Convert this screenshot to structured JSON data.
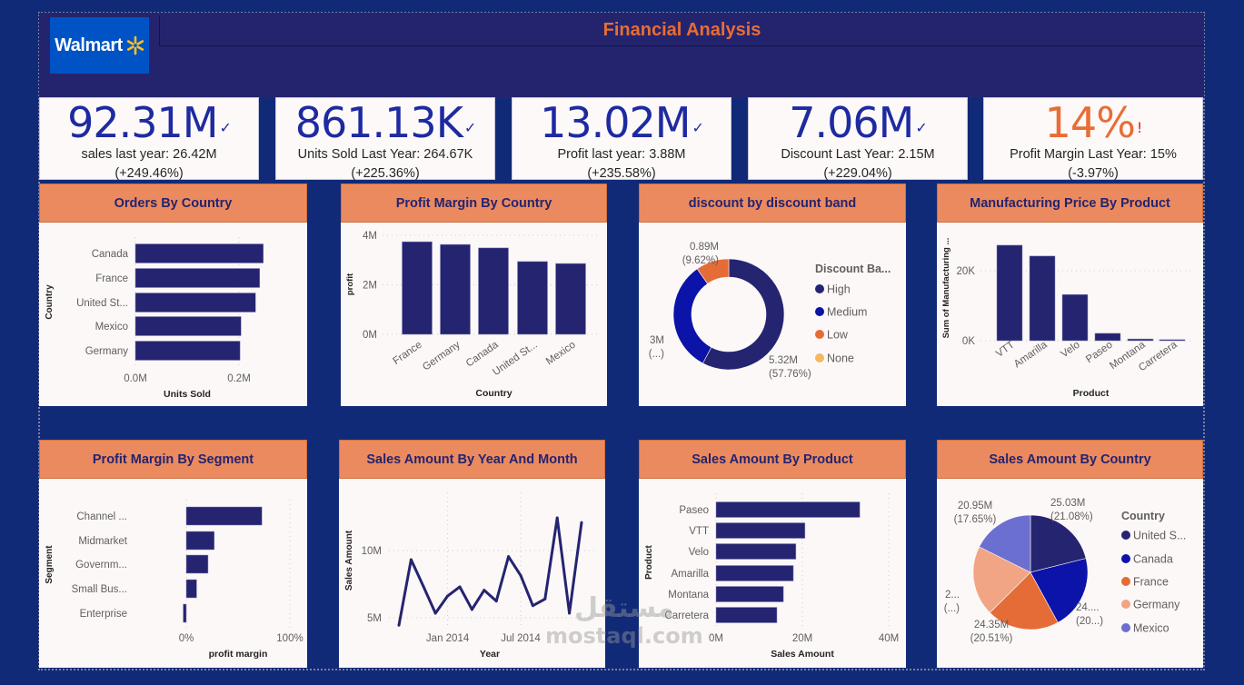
{
  "header": {
    "title": "Financial Analysis",
    "logo_text": "Walmart"
  },
  "kpis": [
    {
      "value": "92.31M",
      "mark": "✓",
      "sub1": "sales last year: 26.42M",
      "sub2": "(+249.46%)",
      "color": "#1e2aa0"
    },
    {
      "value": "861.13K",
      "mark": "✓",
      "sub1": "Units Sold Last Year: 264.67K",
      "sub2": "(+225.36%)",
      "color": "#1e2aa0"
    },
    {
      "value": "13.02M",
      "mark": "✓",
      "sub1": "Profit last year: 3.88M",
      "sub2": "(+235.58%)",
      "color": "#1e2aa0"
    },
    {
      "value": "7.06M",
      "mark": "✓",
      "sub1": "Discount Last Year: 2.15M",
      "sub2": "(+229.04%)",
      "color": "#1e2aa0"
    },
    {
      "value": "14%",
      "mark": "!",
      "sub1": "Profit Margin Last Year: 15%",
      "sub2": "(-3.97%)",
      "color": "#e86d35"
    }
  ],
  "colors": {
    "navy": "#252470",
    "blue": "#0c13a8",
    "orange": "#e66c37",
    "salmon": "#f1a585",
    "yellow": "#f6b75f",
    "violet": "#6b6fcf",
    "title_bar": "#ec8a5f"
  },
  "watermark": {
    "arabic": "مستقل",
    "latin": "mostaql.com"
  },
  "chart_data": [
    {
      "id": "orders",
      "title": "Orders By Country",
      "type": "bar",
      "orientation": "horizontal",
      "categories": [
        "Canada",
        "France",
        "United St...",
        "Mexico",
        "Germany"
      ],
      "values": [
        0.247,
        0.24,
        0.232,
        0.204,
        0.202
      ],
      "unit": "M",
      "xlabel": "Units Sold",
      "ylabel": "Country",
      "ticks": [
        "0.0M",
        "0.2M"
      ],
      "xlim": [
        0,
        0.25
      ]
    },
    {
      "id": "pmcountry",
      "title": "Profit Margin By Country",
      "type": "bar",
      "categories": [
        "France",
        "Germany",
        "Canada",
        "United St...",
        "Mexico"
      ],
      "values": [
        3.74,
        3.63,
        3.49,
        2.94,
        2.86
      ],
      "unit": "M",
      "xlabel": "Country",
      "ylabel": "profit",
      "ticks": [
        "0M",
        "2M",
        "4M"
      ],
      "ylim": [
        0,
        4
      ]
    },
    {
      "id": "discount",
      "title": "discount by discount band",
      "type": "pie",
      "donut": true,
      "legend_title": "Discount Ba...",
      "categories": [
        "High",
        "Medium",
        "Low",
        "None"
      ],
      "values": [
        5.32,
        3.0,
        0.89,
        0
      ],
      "percents": [
        57.76,
        32.62,
        9.62,
        0
      ],
      "labels": [
        [
          "5.32M",
          "(57.76%)"
        ],
        [
          "3M",
          "(...)"
        ],
        [
          "0.89M",
          "(9.62%)"
        ]
      ],
      "legend": "right"
    },
    {
      "id": "mfg",
      "title": "Manufacturing Price By Product",
      "type": "bar",
      "categories": [
        "VTT",
        "Amarilla",
        "Velo",
        "Paseo",
        "Montana",
        "Carretera"
      ],
      "values": [
        27.3,
        24.2,
        13.2,
        2.1,
        0.5,
        0.3
      ],
      "unit": "K",
      "xlabel": "Product",
      "ylabel": "Sum of Manufacturing ...",
      "ticks": [
        "0K",
        "20K"
      ],
      "ylim": [
        0,
        28
      ]
    },
    {
      "id": "segment",
      "title": "Profit Margin By Segment",
      "type": "bar",
      "orientation": "horizontal",
      "categories": [
        "Channel ...",
        "Midmarket",
        "Governm...",
        "Small Bus...",
        "Enterprise"
      ],
      "values": [
        73,
        27,
        21,
        10,
        -3
      ],
      "unit": "%",
      "xlabel": "profit margin",
      "ylabel": "Segment",
      "ticks": [
        "0%",
        "100%"
      ],
      "xlim": [
        0,
        100
      ]
    },
    {
      "id": "salesmonth",
      "title": "Sales Amount By Year And Month",
      "type": "line",
      "x": [
        "2013-09",
        "2013-10",
        "2013-11",
        "2013-12",
        "2014-01",
        "2014-02",
        "2014-03",
        "2014-04",
        "2014-05",
        "2014-06",
        "2014-07",
        "2014-08",
        "2014-09",
        "2014-10",
        "2014-11",
        "2014-12"
      ],
      "values": [
        4.44,
        9.32,
        7.36,
        5.34,
        6.62,
        7.3,
        5.62,
        7.05,
        6.24,
        9.55,
        8.15,
        5.9,
        6.4,
        12.43,
        5.34,
        12.09
      ],
      "unit": "M",
      "xlabel": "Year",
      "ylabel": "Sales Amount",
      "xticks": [
        "Jan 2014",
        "Jul 2014"
      ],
      "yticks": [
        "5M",
        "10M"
      ]
    },
    {
      "id": "salesproduct",
      "title": "Sales Amount By Product",
      "type": "bar",
      "orientation": "horizontal",
      "categories": [
        "Paseo",
        "VTT",
        "Velo",
        "Amarilla",
        "Montana",
        "Carretera"
      ],
      "values": [
        33.3,
        20.6,
        18.5,
        17.9,
        15.6,
        14.1
      ],
      "unit": "M",
      "xlabel": "Sales Amount",
      "ylabel": "Product",
      "ticks": [
        "0M",
        "20M",
        "40M"
      ],
      "xlim": [
        0,
        40
      ]
    },
    {
      "id": "salescountry",
      "title": "Sales Amount By Country",
      "type": "pie",
      "legend_title": "Country",
      "categories": [
        "United S...",
        "Canada",
        "France",
        "Germany",
        "Mexico"
      ],
      "values": [
        25.03,
        24.89,
        24.35,
        23.51,
        20.95
      ],
      "percents": [
        21.08,
        20.96,
        20.51,
        19.8,
        17.65
      ],
      "labels": [
        [
          "25.03M",
          "(21.08%)"
        ],
        [
          "24....",
          "(20...)"
        ],
        [
          "24.35M",
          "(20.51%)"
        ],
        [
          "2...",
          "(...)"
        ],
        [
          "20.95M",
          "(17.65%)"
        ]
      ],
      "legend": "right"
    }
  ]
}
